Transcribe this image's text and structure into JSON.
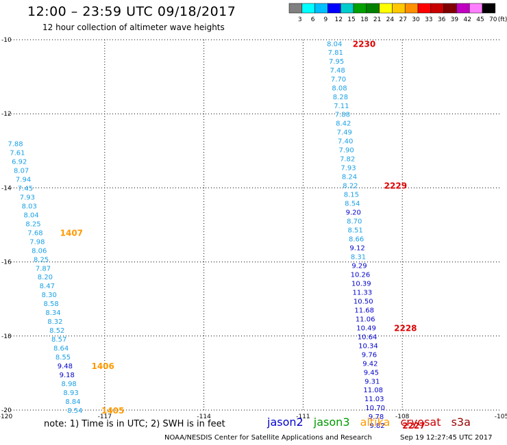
{
  "header": {
    "title": "12:00 – 23:59 UTC 09/18/2017",
    "subtitle": "12 hour collection of altimeter wave heights"
  },
  "colorbar": {
    "labels": [
      "3",
      "6",
      "9",
      "12",
      "15",
      "18",
      "21",
      "24",
      "27",
      "30",
      "33",
      "36",
      "39",
      "42",
      "45",
      "70"
    ],
    "unit": "(ft)",
    "colors": [
      "#808080",
      "#00ffff",
      "#00bfff",
      "#0000ff",
      "#00cccc",
      "#00a000",
      "#008000",
      "#ffff00",
      "#ffc800",
      "#ff9000",
      "#ff0000",
      "#c80000",
      "#800000",
      "#c000c0",
      "#ff80ff",
      "#000000"
    ]
  },
  "footer": {
    "note": "note:  1) Time is in UTC; 2) SWH is in feet",
    "legend": [
      {
        "name": "jason2",
        "color": "#0000cc"
      },
      {
        "name": "jason3",
        "color": "#009900"
      },
      {
        "name": "altika",
        "color": "#ff9900"
      },
      {
        "name": "cryosat",
        "color": "#cc0000"
      },
      {
        "name": "s3a",
        "color": "#990000"
      }
    ],
    "credit": "NOAA/NESDIS Center for Satellite Applications and Research",
    "timestamp": "Sep 19 12:27:45 UTC 2017"
  },
  "chart_data": {
    "type": "scatter",
    "xlim": [
      -120,
      -105
    ],
    "ylim": [
      -20,
      -10
    ],
    "x_ticks": [
      "-120",
      "-117",
      "-114",
      "-111",
      "-108",
      "-105"
    ],
    "y_ticks": [
      "-10",
      "-12",
      "-14",
      "-16",
      "-18",
      "-20"
    ],
    "grid": true,
    "value_colors": {
      "light": "#1aa0e6",
      "dark": "#0000cc"
    },
    "track_east": [
      {
        "x": -110.05,
        "y": -10.1,
        "v": "8.04",
        "c": "light"
      },
      {
        "x": -110.02,
        "y": -10.33,
        "v": "7.81",
        "c": "light"
      },
      {
        "x": -109.99,
        "y": -10.57,
        "v": "7.95",
        "c": "light"
      },
      {
        "x": -109.96,
        "y": -10.81,
        "v": "7.48",
        "c": "light"
      },
      {
        "x": -109.93,
        "y": -11.05,
        "v": "7.70",
        "c": "light"
      },
      {
        "x": -109.9,
        "y": -11.29,
        "v": "8.08",
        "c": "light"
      },
      {
        "x": -109.87,
        "y": -11.53,
        "v": "8.28",
        "c": "light"
      },
      {
        "x": -109.84,
        "y": -11.77,
        "v": "7.11",
        "c": "light"
      },
      {
        "x": -109.81,
        "y": -12.01,
        "v": "7.88",
        "c": "light"
      },
      {
        "x": -109.78,
        "y": -12.25,
        "v": "8.42",
        "c": "light"
      },
      {
        "x": -109.75,
        "y": -12.49,
        "v": "7.49",
        "c": "light"
      },
      {
        "x": -109.72,
        "y": -12.73,
        "v": "7.40",
        "c": "light"
      },
      {
        "x": -109.69,
        "y": -12.97,
        "v": "7.90",
        "c": "light"
      },
      {
        "x": -109.66,
        "y": -13.21,
        "v": "7.82",
        "c": "light"
      },
      {
        "x": -109.63,
        "y": -13.45,
        "v": "7.93",
        "c": "light"
      },
      {
        "x": -109.6,
        "y": -13.69,
        "v": "8.24",
        "c": "light"
      },
      {
        "x": -109.57,
        "y": -13.93,
        "v": "8.22",
        "c": "light"
      },
      {
        "x": -109.54,
        "y": -14.17,
        "v": "8.15",
        "c": "light"
      },
      {
        "x": -109.51,
        "y": -14.41,
        "v": "8.54",
        "c": "light"
      },
      {
        "x": -109.48,
        "y": -14.65,
        "v": "9.20",
        "c": "dark"
      },
      {
        "x": -109.45,
        "y": -14.89,
        "v": "8.70",
        "c": "light"
      },
      {
        "x": -109.42,
        "y": -15.13,
        "v": "8.51",
        "c": "light"
      },
      {
        "x": -109.39,
        "y": -15.37,
        "v": "8.66",
        "c": "light"
      },
      {
        "x": -109.36,
        "y": -15.61,
        "v": "9.12",
        "c": "dark"
      },
      {
        "x": -109.33,
        "y": -15.85,
        "v": "8.31",
        "c": "light"
      },
      {
        "x": -109.3,
        "y": -16.09,
        "v": "9.29",
        "c": "dark"
      },
      {
        "x": -109.27,
        "y": -16.33,
        "v": "10.26",
        "c": "dark"
      },
      {
        "x": -109.24,
        "y": -16.57,
        "v": "10.39",
        "c": "dark"
      },
      {
        "x": -109.21,
        "y": -16.81,
        "v": "11.33",
        "c": "dark"
      },
      {
        "x": -109.18,
        "y": -17.05,
        "v": "10.50",
        "c": "dark"
      },
      {
        "x": -109.15,
        "y": -17.29,
        "v": "11.68",
        "c": "dark"
      },
      {
        "x": -109.12,
        "y": -17.53,
        "v": "11.06",
        "c": "dark"
      },
      {
        "x": -109.09,
        "y": -17.77,
        "v": "10.49",
        "c": "dark"
      },
      {
        "x": -109.06,
        "y": -18.01,
        "v": "10.64",
        "c": "dark"
      },
      {
        "x": -109.03,
        "y": -18.25,
        "v": "10.34",
        "c": "dark"
      },
      {
        "x": -109.0,
        "y": -18.49,
        "v": "9.76",
        "c": "dark"
      },
      {
        "x": -108.97,
        "y": -18.73,
        "v": "9.42",
        "c": "dark"
      },
      {
        "x": -108.94,
        "y": -18.97,
        "v": "9.45",
        "c": "dark"
      },
      {
        "x": -108.91,
        "y": -19.21,
        "v": "9.31",
        "c": "dark"
      },
      {
        "x": -108.88,
        "y": -19.45,
        "v": "11.08",
        "c": "dark"
      },
      {
        "x": -108.85,
        "y": -19.69,
        "v": "11.03",
        "c": "dark"
      },
      {
        "x": -108.82,
        "y": -19.93,
        "v": "10.70",
        "c": "dark"
      },
      {
        "x": -108.79,
        "y": -20.17,
        "v": "9.78",
        "c": "dark"
      },
      {
        "x": -108.76,
        "y": -20.41,
        "v": "9.82",
        "c": "dark"
      }
    ],
    "track_west": [
      {
        "x": -119.7,
        "y": -12.8,
        "v": "7.88",
        "c": "light"
      },
      {
        "x": -119.64,
        "y": -13.04,
        "v": "7.61",
        "c": "light"
      },
      {
        "x": -119.58,
        "y": -13.28,
        "v": "6.92",
        "c": "light"
      },
      {
        "x": -119.52,
        "y": -13.52,
        "v": "8.07",
        "c": "light"
      },
      {
        "x": -119.46,
        "y": -13.76,
        "v": "7.94",
        "c": "light"
      },
      {
        "x": -119.4,
        "y": -14.0,
        "v": "7.45",
        "c": "light"
      },
      {
        "x": -119.34,
        "y": -14.24,
        "v": "7.93",
        "c": "light"
      },
      {
        "x": -119.28,
        "y": -14.48,
        "v": "8.03",
        "c": "light"
      },
      {
        "x": -119.22,
        "y": -14.72,
        "v": "8.04",
        "c": "light"
      },
      {
        "x": -119.16,
        "y": -14.96,
        "v": "8.25",
        "c": "light"
      },
      {
        "x": -119.1,
        "y": -15.2,
        "v": "7.68",
        "c": "light"
      },
      {
        "x": -119.04,
        "y": -15.44,
        "v": "7.98",
        "c": "light"
      },
      {
        "x": -118.98,
        "y": -15.68,
        "v": "8.06",
        "c": "light"
      },
      {
        "x": -118.92,
        "y": -15.92,
        "v": "8.25",
        "c": "light"
      },
      {
        "x": -118.86,
        "y": -16.16,
        "v": "7.87",
        "c": "light"
      },
      {
        "x": -118.8,
        "y": -16.4,
        "v": "8.20",
        "c": "light"
      },
      {
        "x": -118.74,
        "y": -16.64,
        "v": "8.47",
        "c": "light"
      },
      {
        "x": -118.68,
        "y": -16.88,
        "v": "8.30",
        "c": "light"
      },
      {
        "x": -118.62,
        "y": -17.12,
        "v": "8.58",
        "c": "light"
      },
      {
        "x": -118.56,
        "y": -17.36,
        "v": "8.34",
        "c": "light"
      },
      {
        "x": -118.5,
        "y": -17.6,
        "v": "8.32",
        "c": "light"
      },
      {
        "x": -118.44,
        "y": -17.84,
        "v": "8.52",
        "c": "light"
      },
      {
        "x": -118.38,
        "y": -18.08,
        "v": "8.57",
        "c": "light"
      },
      {
        "x": -118.32,
        "y": -18.32,
        "v": "8.64",
        "c": "light"
      },
      {
        "x": -118.26,
        "y": -18.56,
        "v": "8.55",
        "c": "light"
      },
      {
        "x": -118.2,
        "y": -18.8,
        "v": "9.48",
        "c": "dark"
      },
      {
        "x": -118.14,
        "y": -19.04,
        "v": "9.18",
        "c": "dark"
      },
      {
        "x": -118.08,
        "y": -19.28,
        "v": "8.98",
        "c": "light"
      },
      {
        "x": -118.02,
        "y": -19.52,
        "v": "8.93",
        "c": "light"
      },
      {
        "x": -117.96,
        "y": -19.76,
        "v": "8.84",
        "c": "light"
      },
      {
        "x": -117.9,
        "y": -20.0,
        "v": "8.54",
        "c": "light"
      }
    ],
    "time_labels": [
      {
        "x": -109.5,
        "y": -10.1,
        "t": "2230",
        "color": "#dd0000"
      },
      {
        "x": -108.55,
        "y": -13.93,
        "t": "2229",
        "color": "#dd0000"
      },
      {
        "x": -108.25,
        "y": -17.77,
        "t": "2228",
        "color": "#dd0000"
      },
      {
        "x": -108.0,
        "y": -20.41,
        "t": "2227",
        "color": "#dd0000"
      },
      {
        "x": -118.35,
        "y": -15.2,
        "t": "1407",
        "color": "#ff9900"
      },
      {
        "x": -117.4,
        "y": -18.8,
        "t": "1406",
        "color": "#ff9900"
      },
      {
        "x": -117.1,
        "y": -20.0,
        "t": "1405",
        "color": "#ff9900"
      }
    ]
  }
}
